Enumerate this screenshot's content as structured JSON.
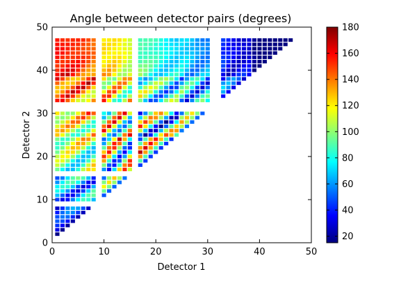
{
  "chart_data": {
    "type": "heatmap",
    "title": "Angle between detector pairs (degrees)",
    "xlabel": "Detector 1",
    "ylabel": "Detector 2",
    "xlim": [
      0,
      50
    ],
    "ylim": [
      0,
      50
    ],
    "xticks": [
      "0",
      "10",
      "20",
      "30",
      "40",
      "50"
    ],
    "yticks": [
      "0",
      "10",
      "20",
      "30",
      "40",
      "50"
    ],
    "grid": false,
    "colormap": "jet",
    "colorbar": {
      "min": 15,
      "max": 180,
      "ticks": [
        "20",
        "40",
        "60",
        "80",
        "100",
        "120",
        "140",
        "160",
        "180"
      ]
    },
    "missing_detectors": [
      9,
      16,
      31,
      32
    ],
    "n_detectors": 47,
    "matrix_rule": "cell (detector1 = i, detector2 = j) drawn for i < j <= 47, excluding detectors 9, 16, 31 and 32; color = angle in degrees on the jet scale",
    "background_color": "#ffffff",
    "frame_color": "#000000"
  }
}
